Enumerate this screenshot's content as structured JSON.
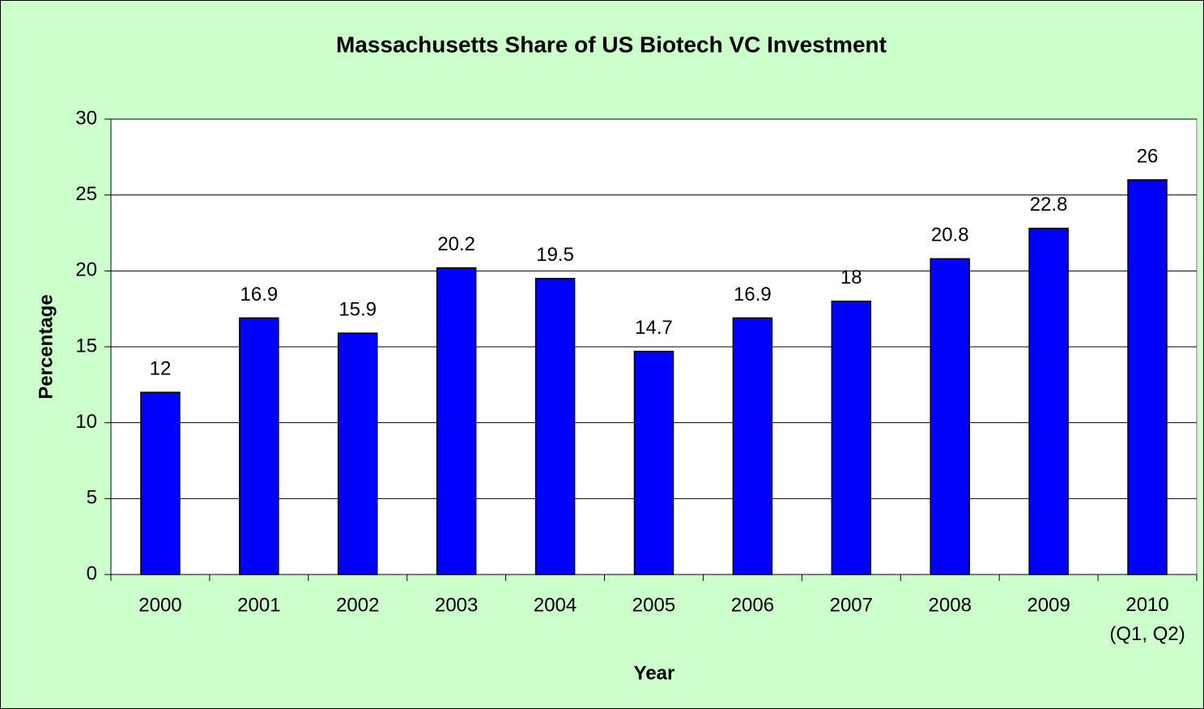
{
  "chart_data": {
    "type": "bar",
    "title": "Massachusetts Share of US Biotech VC Investment",
    "x_label": "Year",
    "y_label": "Percentage",
    "categories": [
      "2000",
      "2001",
      "2002",
      "2003",
      "2004",
      "2005",
      "2006",
      "2007",
      "2008",
      "2009",
      "2010\n(Q1, Q2)"
    ],
    "values": [
      12,
      16.9,
      15.9,
      20.2,
      19.5,
      14.7,
      16.9,
      18,
      20.8,
      22.8,
      26
    ],
    "color": "#0000ff",
    "ylim": [
      0,
      30
    ],
    "yticks": [
      0,
      5,
      10,
      15,
      20,
      25,
      30
    ],
    "grid": true
  }
}
